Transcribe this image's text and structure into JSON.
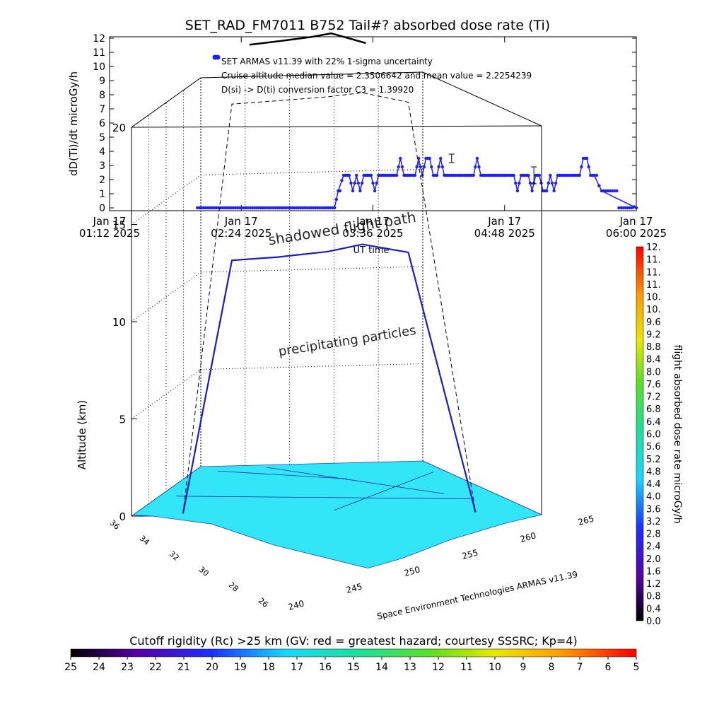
{
  "colors": {
    "line": "#1e1eff",
    "surface": "#33e6f7",
    "precip": "#44dd66",
    "precip_high": "#a8e032",
    "grid": "#000000"
  },
  "chart_data": [
    {
      "type": "line",
      "title": "SET_RAD_FM7011  B752 Tail#? absorbed dose rate (Ti)",
      "ylabel": "dD(Ti)/dt microGy/h",
      "xlabel": "UT time",
      "ylim": [
        0,
        12
      ],
      "yticks": [
        "0",
        "1",
        "2",
        "3",
        "4",
        "5",
        "6",
        "7",
        "8",
        "9",
        "10",
        "11",
        "12"
      ],
      "xlim": [
        "01:12",
        "06:00"
      ],
      "xticks": [
        {
          "date": "Jan 17",
          "time": "01:12 2025"
        },
        {
          "date": "Jan 17",
          "time": "02:24 2025"
        },
        {
          "date": "Jan 17",
          "time": "03:36 2025"
        },
        {
          "date": "Jan 17",
          "time": "04:48 2025"
        },
        {
          "date": "Jan 17",
          "time": "06:00 2025"
        }
      ],
      "legend": [
        "SET ARMAS v11.39 with 22% 1-sigma uncertainty",
        "Cruise altitude median value = 2.3506642 and mean value = 2.2254239",
        "D(si) -> D(ti) conversion factor C3 = 1.39920"
      ],
      "series": [
        {
          "x": [
            "02:00",
            "03:15",
            "03:17",
            "03:20",
            "03:23",
            "03:25",
            "03:27",
            "03:29",
            "03:31",
            "03:33",
            "03:35",
            "03:37",
            "03:39",
            "03:41",
            "03:43",
            "03:45",
            "03:47",
            "03:49",
            "03:51",
            "03:53",
            "03:55",
            "03:57",
            "03:59",
            "04:01",
            "04:03",
            "04:05",
            "04:07",
            "04:09",
            "04:11",
            "04:13",
            "04:15",
            "04:17",
            "04:19",
            "04:21",
            "04:23",
            "04:25",
            "04:27",
            "04:29",
            "04:31",
            "04:33",
            "04:35",
            "04:37",
            "04:39",
            "04:41",
            "04:43",
            "04:45",
            "04:47",
            "04:49",
            "04:51",
            "04:53",
            "04:55",
            "04:57",
            "04:59",
            "05:01",
            "05:03",
            "05:05",
            "05:07",
            "05:09",
            "05:11",
            "05:13",
            "05:15",
            "05:17",
            "05:19",
            "05:21",
            "05:23",
            "05:25",
            "05:27",
            "05:29",
            "05:31",
            "05:33",
            "05:35",
            "05:37",
            "05:41",
            "06:00"
          ],
          "y": [
            0,
            0,
            1.2,
            2.3,
            2.3,
            1.2,
            2.3,
            1.2,
            2.3,
            2.3,
            2.3,
            1.2,
            2.3,
            2.3,
            2.3,
            2.3,
            2.3,
            2.3,
            3.5,
            2.3,
            2.3,
            2.3,
            2.3,
            3.5,
            2.3,
            3.5,
            3.5,
            2.3,
            2.3,
            3.5,
            2.3,
            2.3,
            2.3,
            2.3,
            2.3,
            2.3,
            2.3,
            2.3,
            2.3,
            3.5,
            2.3,
            2.3,
            2.3,
            2.3,
            2.3,
            2.3,
            2.3,
            2.3,
            2.3,
            2.3,
            1.2,
            2.3,
            2.3,
            2.3,
            1.2,
            2.3,
            2.3,
            1.2,
            1.2,
            2.3,
            1.2,
            2.3,
            2.3,
            2.3,
            2.3,
            2.3,
            2.3,
            2.3,
            3.5,
            3.5,
            2.3,
            2.3,
            1.2,
            0
          ]
        }
      ],
      "error_bars": [
        {
          "x": "04:19",
          "y": 3.5,
          "err": 0.3
        },
        {
          "x": "05:04",
          "y": 2.3,
          "err": 0.6
        }
      ]
    },
    {
      "type": "scatter",
      "title": "",
      "zlabel": "Altitude (km)",
      "zticks": [
        "0",
        "5",
        "10",
        "15",
        "20"
      ],
      "lat_ticks": [
        "36",
        "34",
        "32",
        "30",
        "28",
        "26"
      ],
      "lon_ticks": [
        "240",
        "245",
        "250",
        "255",
        "260",
        "265"
      ],
      "annotations": [
        "shadowed flight path",
        "precipitating particles"
      ],
      "credit": "Space Environment Technologies ARMAS v11.39",
      "flight_altitude_km": [
        0,
        11.2,
        11.2,
        11.3,
        11.5,
        11.6,
        0
      ]
    },
    {
      "type": "heatmap",
      "title": "flight absorbed dose rate microGy/h",
      "range": [
        0.0,
        12.0
      ],
      "ticks": [
        "0.0",
        "0.4",
        "0.8",
        "1.2",
        "1.6",
        "2.0",
        "2.4",
        "2.8",
        "3.2",
        "3.6",
        "4.0",
        "4.4",
        "4.8",
        "5.2",
        "5.6",
        "6.0",
        "6.4",
        "6.8",
        "7.2",
        "7.6",
        "8.0",
        "8.4",
        "8.8",
        "9.2",
        "9.6",
        "10.",
        "10.",
        "11.",
        "11.",
        "11.",
        "12."
      ]
    },
    {
      "type": "heatmap",
      "title": "Cutoff rigidity (Rc) >25 km (GV: red = greatest hazard; courtesy SSSRC; Kp=4)",
      "range": [
        25,
        5
      ],
      "ticks": [
        "25",
        "24",
        "23",
        "22",
        "21",
        "20",
        "19",
        "18",
        "17",
        "16",
        "15",
        "14",
        "13",
        "12",
        "11",
        "10",
        "9",
        "8",
        "7",
        "6",
        "5"
      ]
    }
  ]
}
